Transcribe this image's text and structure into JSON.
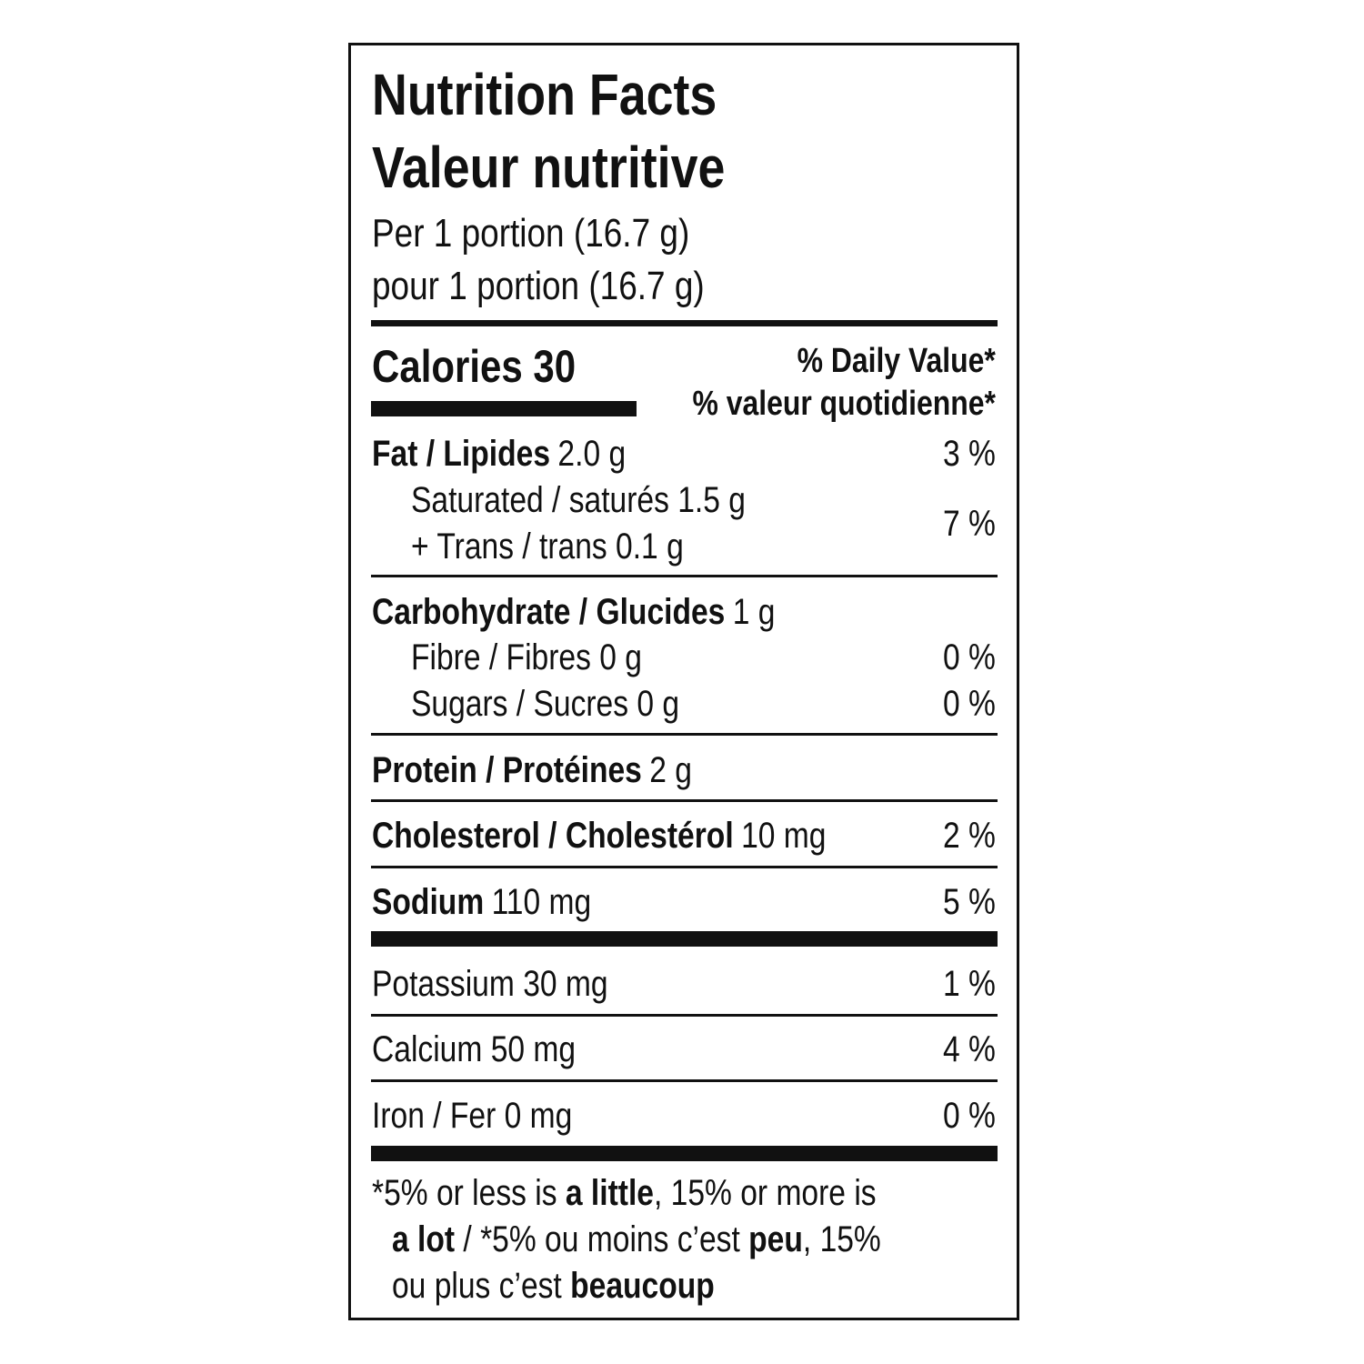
{
  "header": {
    "title_en": "Nutrition Facts",
    "title_fr": "Valeur nutritive",
    "serving_en": "Per 1 portion (16.7 g)",
    "serving_fr": "pour 1 portion (16.7 g)"
  },
  "calories": "Calories 30",
  "daily_value": [
    "% Daily Value*",
    "% valeur quotidienne*"
  ],
  "rows": [
    {
      "bold": "Fat / Lipides",
      "text": "2.0 g",
      "dv": "3 %"
    },
    {
      "text": "Saturated / saturés 1.5 g",
      "indent": true,
      "dv": "7 %"
    },
    {
      "text": "+ Trans / trans 0.1 g",
      "indent": true
    },
    {
      "bold": "Carbohydrate / Glucides",
      "text": "1 g"
    },
    {
      "text": "Fibre / Fibres 0 g",
      "indent": true,
      "dv": "0 %"
    },
    {
      "text": "Sugars / Sucres 0 g",
      "indent": true,
      "dv": "0 %"
    },
    {
      "bold": "Protein / Protéines",
      "text": "2 g"
    },
    {
      "bold": "Cholesterol / Cholestérol",
      "text": "10 mg",
      "dv": "2 %"
    },
    {
      "bold": "Sodium",
      "text": "110 mg",
      "dv": "5 %"
    },
    {
      "text": "Potassium 30 mg",
      "dv": "1 %"
    },
    {
      "text": "Calcium 50 mg",
      "dv": "4 %"
    },
    {
      "text": "Iron / Fer 0 mg",
      "dv": "0 %"
    }
  ],
  "footnote": [
    [
      {
        "text": "*5% or less is "
      },
      {
        "text": "a little",
        "bold": true
      },
      {
        "text": ", 15% or more is"
      }
    ],
    [
      {
        "text": "a lot",
        "bold": true
      },
      {
        "text": " / *5% ou moins c’est "
      },
      {
        "text": "peu",
        "bold": true
      },
      {
        "text": ", 15%"
      }
    ],
    [
      {
        "text": "ou plus c’est "
      },
      {
        "text": "beaucoup",
        "bold": true
      }
    ]
  ]
}
